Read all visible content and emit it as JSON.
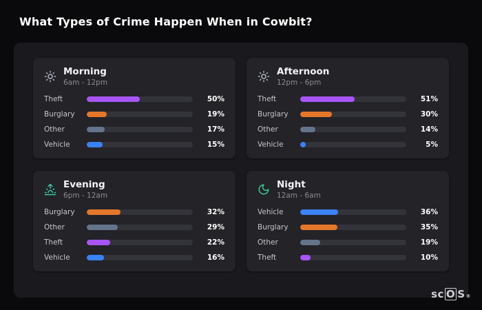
{
  "page": {
    "title": "What Types of Crime Happen When in Cowbit?"
  },
  "logo": {
    "prefix": "sc",
    "boxed_letter": "O",
    "suffix": "S",
    "registered_mark": "®"
  },
  "colors": {
    "background": "#0a0a0c",
    "panel": "#1a1a1e",
    "card": "#232328",
    "bar_track": "#33333a",
    "theft": "#a855f7",
    "burglary": "#e5772b",
    "other": "#64748b",
    "vehicle": "#3b82f6"
  },
  "chart_data": [
    {
      "type": "bar",
      "orientation": "horizontal",
      "title": "Morning",
      "subtitle": "6am - 12pm",
      "icon": "sun-icon",
      "icon_color": "#b2b8c2",
      "categories": [
        "Theft",
        "Burglary",
        "Other",
        "Vehicle"
      ],
      "values": [
        50,
        19,
        17,
        15
      ],
      "value_labels": [
        "50%",
        "19%",
        "17%",
        "15%"
      ],
      "colors": [
        "#a855f7",
        "#e5772b",
        "#64748b",
        "#3b82f6"
      ],
      "xlim": [
        0,
        100
      ],
      "grid": false,
      "legend": "none"
    },
    {
      "type": "bar",
      "orientation": "horizontal",
      "title": "Afternoon",
      "subtitle": "12pm - 6pm",
      "icon": "sun-icon",
      "icon_color": "#b2b8c2",
      "categories": [
        "Theft",
        "Burglary",
        "Other",
        "Vehicle"
      ],
      "values": [
        51,
        30,
        14,
        5
      ],
      "value_labels": [
        "51%",
        "30%",
        "14%",
        "5%"
      ],
      "colors": [
        "#a855f7",
        "#e5772b",
        "#64748b",
        "#3b82f6"
      ],
      "xlim": [
        0,
        100
      ],
      "grid": false,
      "legend": "none"
    },
    {
      "type": "bar",
      "orientation": "horizontal",
      "title": "Evening",
      "subtitle": "6pm - 12am",
      "icon": "sunrise-icon",
      "icon_color": "#3bc5a4",
      "categories": [
        "Burglary",
        "Other",
        "Theft",
        "Vehicle"
      ],
      "values": [
        32,
        29,
        22,
        16
      ],
      "value_labels": [
        "32%",
        "29%",
        "22%",
        "16%"
      ],
      "colors": [
        "#e5772b",
        "#64748b",
        "#a855f7",
        "#3b82f6"
      ],
      "xlim": [
        0,
        100
      ],
      "grid": false,
      "legend": "none"
    },
    {
      "type": "bar",
      "orientation": "horizontal",
      "title": "Night",
      "subtitle": "12am - 6am",
      "icon": "moon-icon",
      "icon_color": "#3ec98f",
      "categories": [
        "Vehicle",
        "Burglary",
        "Other",
        "Theft"
      ],
      "values": [
        36,
        35,
        19,
        10
      ],
      "value_labels": [
        "36%",
        "35%",
        "19%",
        "10%"
      ],
      "colors": [
        "#3b82f6",
        "#e5772b",
        "#64748b",
        "#a855f7"
      ],
      "xlim": [
        0,
        100
      ],
      "grid": false,
      "legend": "none"
    }
  ]
}
